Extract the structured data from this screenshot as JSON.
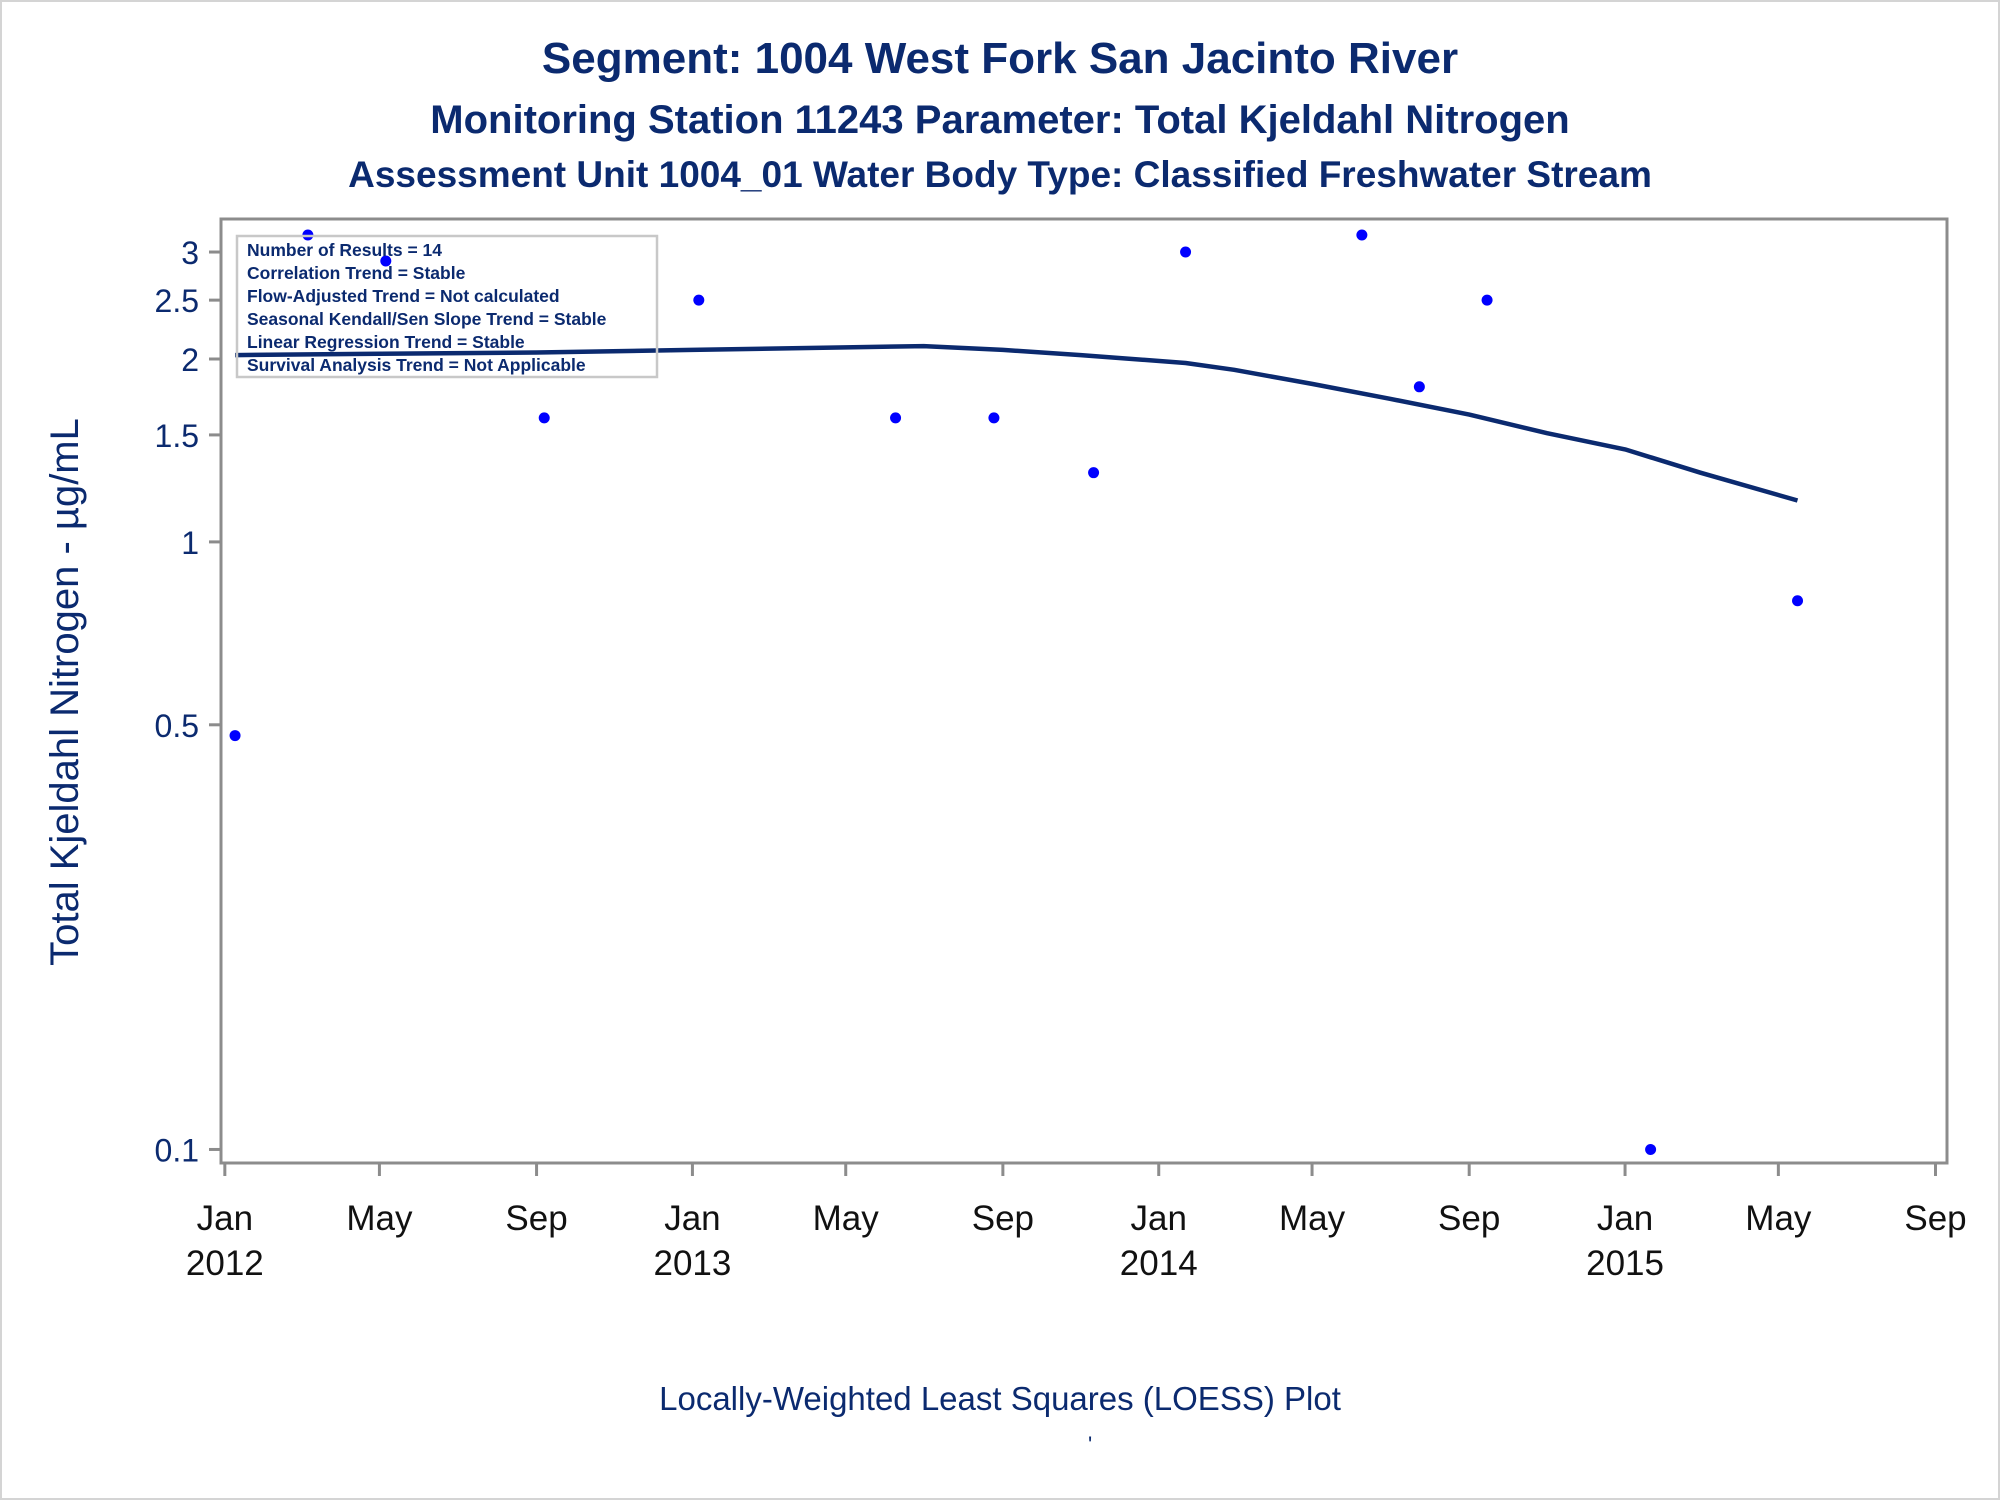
{
  "titles": {
    "line1": "Segment: 1004  West Fork San Jacinto River",
    "line2": "Monitoring Station 11243 Parameter: Total Kjeldahl Nitrogen",
    "line3": "Assessment Unit 1004_01   Water Body Type: Classified Freshwater Stream"
  },
  "footnote": "Locally-Weighted Least Squares (LOESS) Plot",
  "footnote_mark": "'",
  "legend_box": [
    "Number of Results = 14",
    "Correlation Trend = Stable",
    "Flow-Adjusted Trend = Not calculated",
    "Seasonal Kendall/Sen Slope Trend = Stable",
    "Linear Regression Trend = Stable",
    "Survival Analysis Trend = Not Applicable"
  ],
  "colors": {
    "text": "#0b2a6f",
    "points": "#0000ff",
    "loess": "#0b2a6f",
    "axis": "#8c8c8c"
  },
  "chart_data": {
    "type": "scatter",
    "ylabel": "Total Kjeldahl Nitrogen -  µg/mL",
    "xlabel": "",
    "y_scale": "log",
    "ylim": [
      0.095,
      3.4
    ],
    "xlim": [
      "2011-12-29",
      "2015-09-10"
    ],
    "y_ticks": [
      {
        "value": 0.1,
        "label": "0.1"
      },
      {
        "value": 0.5,
        "label": "0.5"
      },
      {
        "value": 1,
        "label": "1"
      },
      {
        "value": 1.5,
        "label": "1.5"
      },
      {
        "value": 2,
        "label": "2"
      },
      {
        "value": 2.5,
        "label": "2.5"
      },
      {
        "value": 3,
        "label": "3"
      }
    ],
    "x_ticks": [
      {
        "date": "2012-01-01",
        "month": "Jan",
        "year": "2012"
      },
      {
        "date": "2012-05-01",
        "month": "May",
        "year": ""
      },
      {
        "date": "2012-09-01",
        "month": "Sep",
        "year": ""
      },
      {
        "date": "2013-01-01",
        "month": "Jan",
        "year": "2013"
      },
      {
        "date": "2013-05-01",
        "month": "May",
        "year": ""
      },
      {
        "date": "2013-09-01",
        "month": "Sep",
        "year": ""
      },
      {
        "date": "2014-01-01",
        "month": "Jan",
        "year": "2014"
      },
      {
        "date": "2014-05-01",
        "month": "May",
        "year": ""
      },
      {
        "date": "2014-09-01",
        "month": "Sep",
        "year": ""
      },
      {
        "date": "2015-01-01",
        "month": "Jan",
        "year": "2015"
      },
      {
        "date": "2015-05-01",
        "month": "May",
        "year": ""
      },
      {
        "date": "2015-09-01",
        "month": "Sep",
        "year": ""
      }
    ],
    "points": [
      {
        "date": "2012-01-09",
        "value": 0.48
      },
      {
        "date": "2012-03-06",
        "value": 3.2
      },
      {
        "date": "2012-05-06",
        "value": 2.9
      },
      {
        "date": "2012-09-07",
        "value": 1.6
      },
      {
        "date": "2013-01-06",
        "value": 2.5
      },
      {
        "date": "2013-06-09",
        "value": 1.6
      },
      {
        "date": "2013-08-25",
        "value": 1.6
      },
      {
        "date": "2013-11-11",
        "value": 1.3
      },
      {
        "date": "2014-01-22",
        "value": 3.0
      },
      {
        "date": "2014-06-09",
        "value": 3.2
      },
      {
        "date": "2014-07-24",
        "value": 1.8
      },
      {
        "date": "2014-09-15",
        "value": 2.5
      },
      {
        "date": "2015-01-21",
        "value": 0.1
      },
      {
        "date": "2015-05-16",
        "value": 0.8
      }
    ],
    "loess": [
      {
        "date": "2012-01-09",
        "value": 2.03
      },
      {
        "date": "2012-05-01",
        "value": 2.04
      },
      {
        "date": "2012-09-01",
        "value": 2.05
      },
      {
        "date": "2013-01-01",
        "value": 2.07
      },
      {
        "date": "2013-05-01",
        "value": 2.09
      },
      {
        "date": "2013-07-01",
        "value": 2.1
      },
      {
        "date": "2013-09-01",
        "value": 2.07
      },
      {
        "date": "2013-11-01",
        "value": 2.03
      },
      {
        "date": "2014-01-22",
        "value": 1.97
      },
      {
        "date": "2014-03-01",
        "value": 1.92
      },
      {
        "date": "2014-05-01",
        "value": 1.82
      },
      {
        "date": "2014-07-01",
        "value": 1.72
      },
      {
        "date": "2014-09-01",
        "value": 1.62
      },
      {
        "date": "2014-11-01",
        "value": 1.51
      },
      {
        "date": "2015-01-01",
        "value": 1.42
      },
      {
        "date": "2015-03-01",
        "value": 1.3
      },
      {
        "date": "2015-05-16",
        "value": 1.17
      }
    ]
  }
}
